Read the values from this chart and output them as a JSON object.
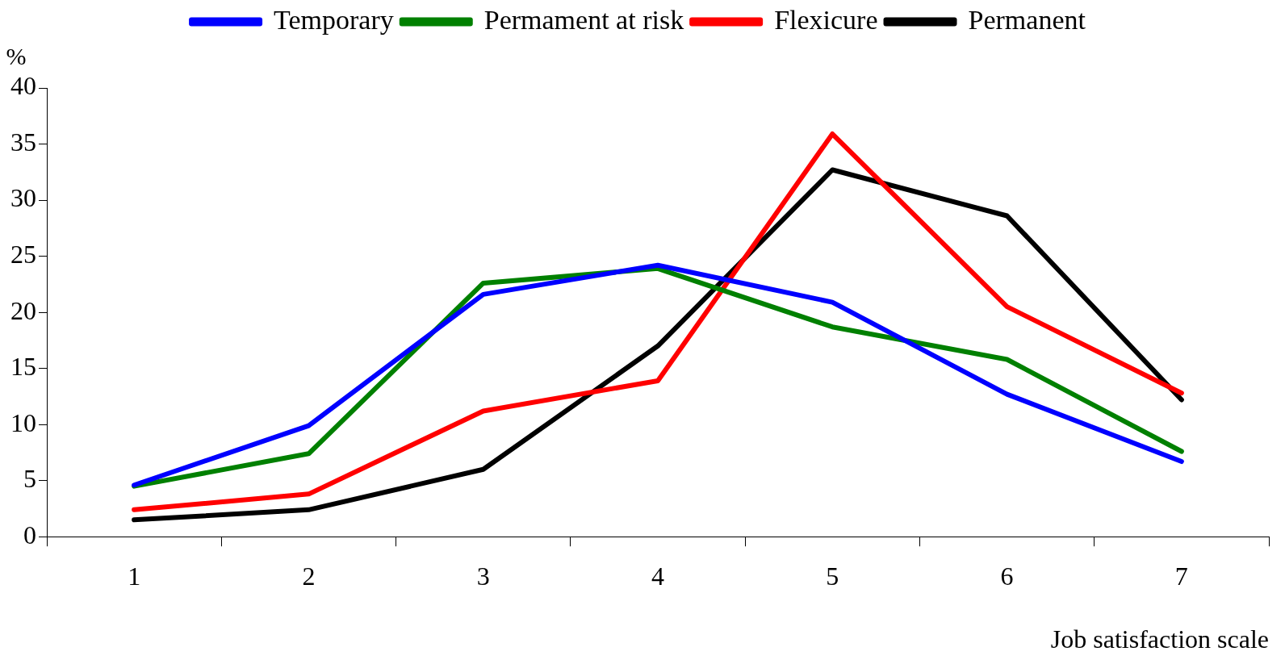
{
  "chart_data": {
    "type": "line",
    "xlabel": "Job satisfaction scale",
    "ylabel": "%",
    "categories": [
      "1",
      "2",
      "3",
      "4",
      "5",
      "6",
      "7"
    ],
    "ylim": [
      0,
      40
    ],
    "yticks": [
      0,
      5,
      10,
      15,
      20,
      25,
      30,
      35,
      40
    ],
    "grid": false,
    "legend": "top",
    "marker": "none",
    "line_style": "solid",
    "series": [
      {
        "name": "Temporary",
        "color": "#0000ff",
        "values": [
          4.6,
          9.9,
          21.6,
          24.2,
          20.9,
          12.7,
          6.7
        ]
      },
      {
        "name": "Permament at risk",
        "color": "#008000",
        "values": [
          4.5,
          7.4,
          22.6,
          23.9,
          18.7,
          15.8,
          7.6
        ]
      },
      {
        "name": "Flexicure",
        "color": "#ff0000",
        "values": [
          2.4,
          3.8,
          11.2,
          13.9,
          35.9,
          20.5,
          12.8
        ]
      },
      {
        "name": "Permanent",
        "color": "#000000",
        "values": [
          1.5,
          2.4,
          6.0,
          17.0,
          32.7,
          28.6,
          12.2
        ]
      }
    ]
  }
}
